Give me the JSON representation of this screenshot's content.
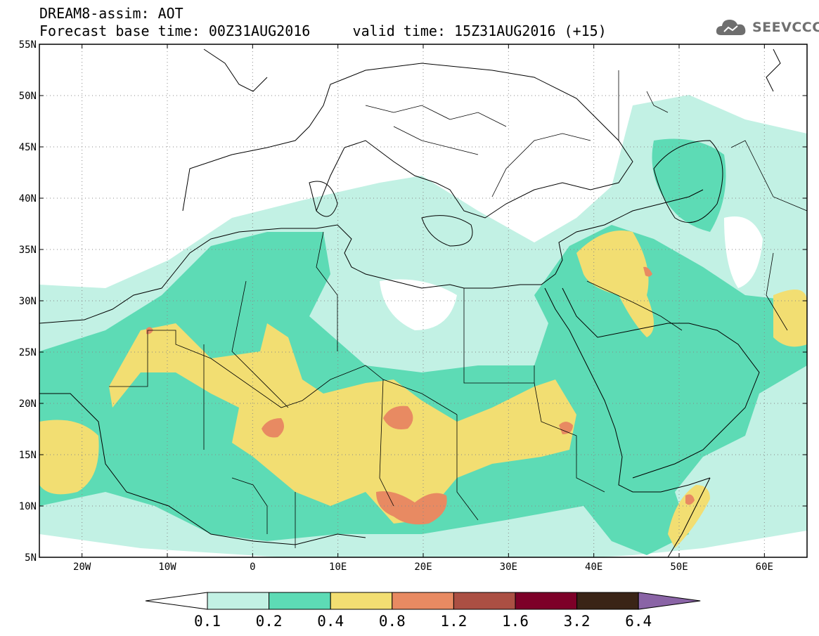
{
  "header": {
    "title": "DREAM8-assim: AOT",
    "base_time_label": "Forecast base time: 00Z31AUG2016",
    "valid_time_label": "valid time: 15Z31AUG2016 (+15)"
  },
  "logo": {
    "text": "SEEVCCC",
    "icon": "cloud-icon"
  },
  "map": {
    "lat_labels": [
      "55N",
      "50N",
      "45N",
      "40N",
      "35N",
      "30N",
      "25N",
      "20N",
      "15N",
      "10N",
      "5N"
    ],
    "lon_labels": [
      "20W",
      "10W",
      "0",
      "10E",
      "20E",
      "30E",
      "40E",
      "50E",
      "60E"
    ],
    "extent": {
      "lon_min": -25,
      "lon_max": 65,
      "lat_min": 5,
      "lat_max": 55
    },
    "grid": "dotted"
  },
  "colorbar": {
    "labels": [
      "0.1",
      "0.2",
      "0.4",
      "0.8",
      "1.2",
      "1.6",
      "3.2",
      "6.4"
    ],
    "colors": [
      "#ffffff",
      "#c2f1e4",
      "#5ddbb5",
      "#f2de72",
      "#e88a62",
      "#ab4f43",
      "#7d0028",
      "#3a2416",
      "#8a64a6"
    ]
  }
}
